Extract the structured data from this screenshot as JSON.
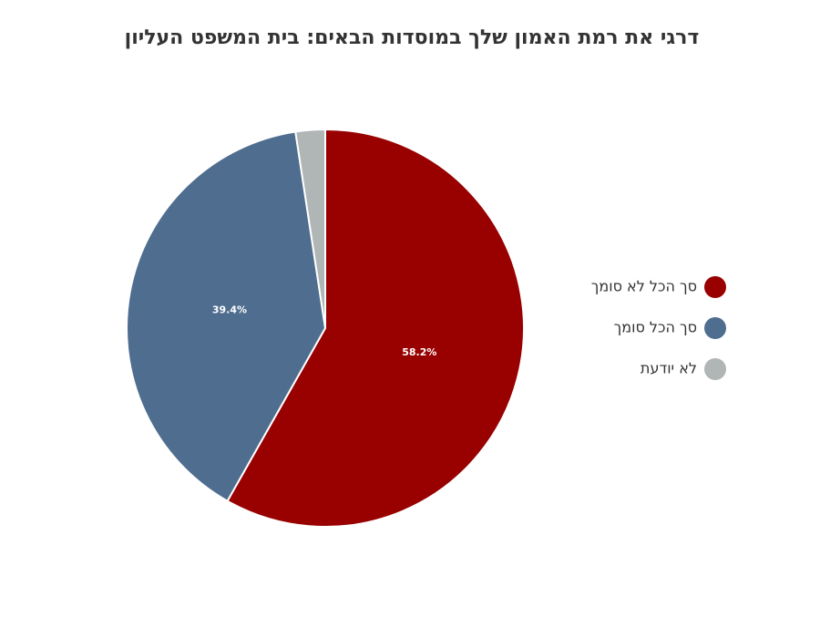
{
  "chart_data": {
    "type": "pie",
    "title": "דרגי את רמת האמון שלך במוסדות הבאים: בית המשפט העליון",
    "categories": [
      "סך הכל לא סומך",
      "סך הכל סומך",
      "לא יודעת"
    ],
    "values": [
      58.2,
      39.4,
      2.4
    ],
    "value_labels": [
      "58.2%",
      "39.4%",
      null
    ],
    "colors": [
      "#990000",
      "#4f6d8f",
      "#b0b5b5"
    ],
    "legend": "right"
  }
}
